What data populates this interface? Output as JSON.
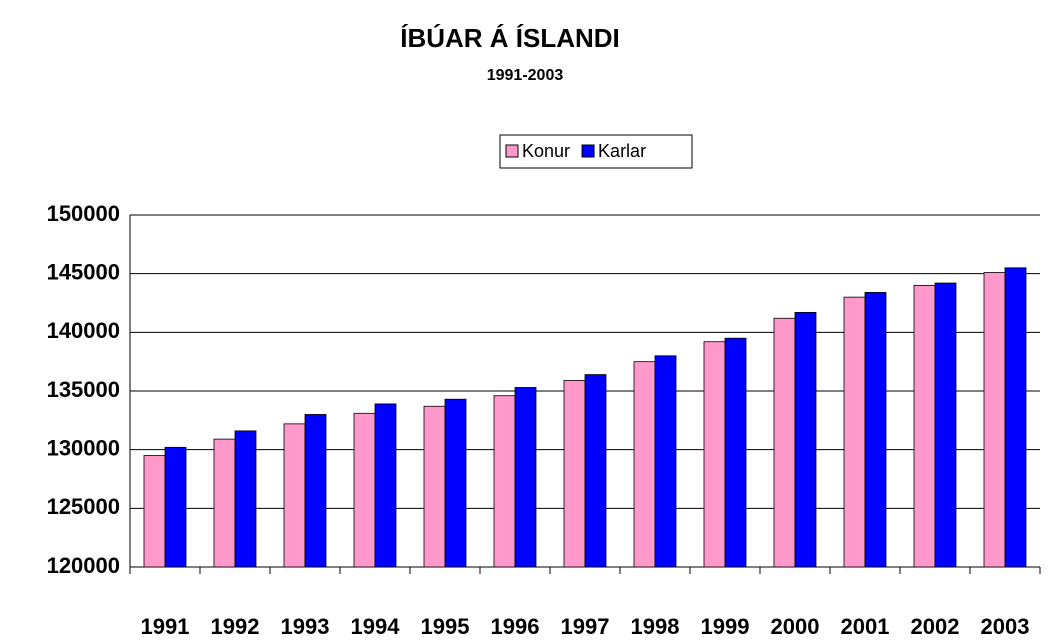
{
  "chart_data": {
    "type": "bar",
    "title": "ÍBÚAR Á ÍSLANDI",
    "subtitle": "1991-2003",
    "categories": [
      "1991",
      "1992",
      "1993",
      "1994",
      "1995",
      "1996",
      "1997",
      "1998",
      "1999",
      "2000",
      "2001",
      "2002",
      "2003"
    ],
    "series": [
      {
        "name": "Konur",
        "color": "#ff99cc",
        "values": [
          129500,
          130900,
          132200,
          133100,
          133700,
          134600,
          135900,
          137500,
          139200,
          141200,
          143000,
          144000,
          145100
        ]
      },
      {
        "name": "Karlar",
        "color": "#0000ff",
        "values": [
          130200,
          131600,
          133000,
          133900,
          134300,
          135300,
          136400,
          138000,
          139500,
          141700,
          143400,
          144200,
          145500
        ]
      }
    ],
    "ylim": [
      120000,
      150000
    ],
    "yticks": [
      120000,
      125000,
      130000,
      135000,
      140000,
      145000,
      150000
    ],
    "grid": true,
    "legend": "top"
  }
}
